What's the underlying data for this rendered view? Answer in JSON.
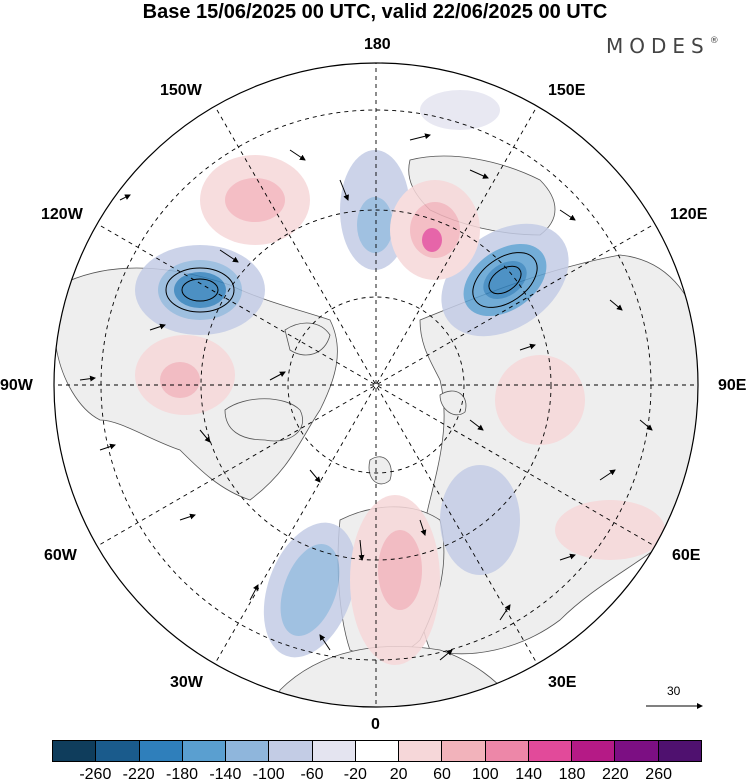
{
  "header": {
    "title": "Base 15/06/2025 00 UTC, valid 22/06/2025 00 UTC",
    "brand": "MODES",
    "brand_mark": "®"
  },
  "map": {
    "projection": "north-polar-stereographic",
    "longitude_labels": {
      "top": "180",
      "top_left": "150W",
      "top_right": "150E",
      "upper_left": "120W",
      "upper_right": "120E",
      "left": "90W",
      "right": "90E",
      "lower_left": "60W",
      "lower_right": "60E",
      "bottom_left": "30W",
      "bottom_right": "30E",
      "bottom": "0"
    },
    "reference_vector_label": "30"
  },
  "colorbar": {
    "tick_labels": [
      "-260",
      "-220",
      "-180",
      "-140",
      "-100",
      "-60",
      "-20",
      "20",
      "60",
      "100",
      "140",
      "180",
      "220",
      "260"
    ],
    "colors": [
      "#0f3d5c",
      "#1a5b8c",
      "#2f7fbb",
      "#5a9fd0",
      "#8fb6dc",
      "#c3cce5",
      "#e4e4f0",
      "#ffffff",
      "#f6d7d9",
      "#f2b3bb",
      "#ed87a8",
      "#e24a9a",
      "#b51a86",
      "#7c0f83",
      "#4f116f"
    ]
  }
}
